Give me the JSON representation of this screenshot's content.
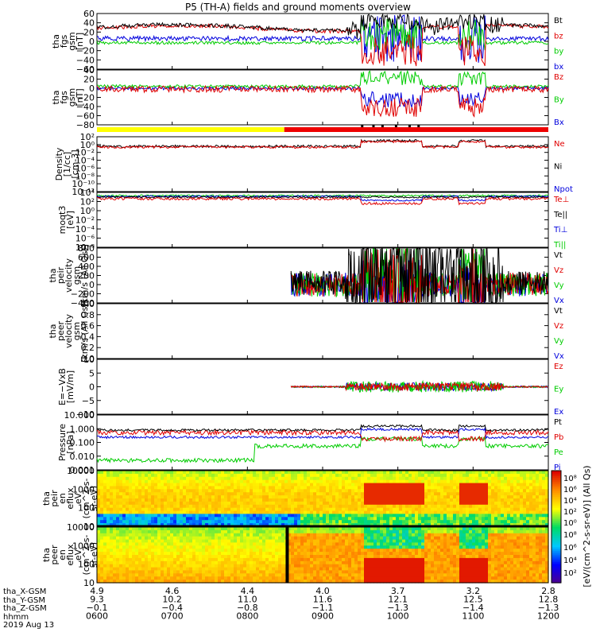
{
  "title": "P5 (TH-A) fields and ground moments overview",
  "date": "2019 Aug 13",
  "colors": {
    "black": "#000000",
    "red": "#e00000",
    "green": "#00cc00",
    "blue": "#0000dd",
    "yellow": "#ffff00",
    "statusRed": "#ee0000"
  },
  "panels": [
    {
      "id": "fgs-gsm-1",
      "ylabel": [
        "tha",
        "fgs",
        "gsm",
        "[nT]"
      ],
      "yticks": [
        "60",
        "40",
        "20",
        "0",
        "−20",
        "−40",
        "−60"
      ],
      "ylim": [
        -60,
        60
      ],
      "legend": [
        {
          "text": "Bt",
          "color": "#000000"
        },
        {
          "text": "bz",
          "color": "#e00000"
        },
        {
          "text": "by",
          "color": "#00cc00"
        },
        {
          "text": "bx",
          "color": "#0000dd"
        }
      ]
    },
    {
      "id": "fgs-gsm-2",
      "ylabel": [
        "tha",
        "fgs",
        "gsm",
        "[nT]"
      ],
      "yticks": [
        "40",
        "20",
        "0",
        "−20",
        "−40",
        "−60",
        "−80"
      ],
      "ylim": [
        -80,
        40
      ],
      "legend": [
        {
          "text": "Bz",
          "color": "#e00000"
        },
        {
          "text": "By",
          "color": "#00cc00"
        },
        {
          "text": "Bx",
          "color": "#0000dd"
        }
      ]
    },
    {
      "id": "density",
      "ylabel": [
        "Density",
        "[1/cc]",
        "[cm-3]"
      ],
      "yticks": [
        "10²",
        "10⁰",
        "10⁻²",
        "10⁻⁴",
        "10⁻⁶",
        "10⁻⁸",
        "10⁻¹⁰",
        "10⁻¹²"
      ],
      "log": true,
      "legend": [
        {
          "text": "Ne",
          "color": "#e00000"
        },
        {
          "text": "Ni",
          "color": "#000000"
        },
        {
          "text": "Npot",
          "color": "#0000dd"
        }
      ]
    },
    {
      "id": "temperature",
      "ylabel": [
        "moqt3",
        "[eV]"
      ],
      "yticks": [
        "10⁴",
        "10²",
        "10⁰",
        "10⁻²",
        "10⁻⁴",
        "10⁻⁶",
        "10⁻⁸"
      ],
      "log": true,
      "legend": [
        {
          "text": "Te⊥",
          "color": "#e00000"
        },
        {
          "text": "Te||",
          "color": "#000000"
        },
        {
          "text": "Ti⊥",
          "color": "#0000dd"
        },
        {
          "text": "Ti||",
          "color": "#00cc00"
        }
      ]
    },
    {
      "id": "peir-velocity",
      "ylabel": [
        "tha",
        "peir",
        "velocity",
        "gsm",
        "[km/s (All Qs)]"
      ],
      "yticks": [
        "800",
        "600",
        "400",
        "200",
        "0",
        "−200",
        "−400"
      ],
      "ylim": [
        -400,
        800
      ],
      "legend": [
        {
          "text": "Vt",
          "color": "#000000"
        },
        {
          "text": "Vz",
          "color": "#e00000"
        },
        {
          "text": "Vy",
          "color": "#00cc00"
        },
        {
          "text": "Vx",
          "color": "#0000dd"
        }
      ]
    },
    {
      "id": "peer-velocity",
      "ylabel": [
        "tha",
        "peer",
        "velocity",
        "gsm",
        "[km/s (All Qs)]"
      ],
      "yticks": [
        "1.0",
        "0.8",
        "0.6",
        "0.4",
        "0.2",
        "0.0"
      ],
      "ylim": [
        0,
        1
      ],
      "legend": [
        {
          "text": "Vt",
          "color": "#000000"
        },
        {
          "text": "Vz",
          "color": "#e00000"
        },
        {
          "text": "Vy",
          "color": "#00cc00"
        },
        {
          "text": "Vx",
          "color": "#0000dd"
        }
      ]
    },
    {
      "id": "efield",
      "ylabel": [
        "E=−VxB",
        "[mV/m]"
      ],
      "yticks": [
        "10",
        "5",
        "0",
        "−5",
        "−10"
      ],
      "ylim": [
        -10,
        10
      ],
      "legend": [
        {
          "text": "Ez",
          "color": "#e00000"
        },
        {
          "text": "Ey",
          "color": "#00cc00"
        },
        {
          "text": "Ex",
          "color": "#0000dd"
        }
      ]
    },
    {
      "id": "pressure",
      "ylabel": [
        "Pressure",
        "[nPa]"
      ],
      "yticks": [
        "10.000",
        "1.000",
        "0.100",
        "0.010",
        "0.001"
      ],
      "log": true,
      "legend": [
        {
          "text": "Pt",
          "color": "#000000"
        },
        {
          "text": "Pb",
          "color": "#e00000"
        },
        {
          "text": "Pe",
          "color": "#00cc00"
        },
        {
          "text": "Pi",
          "color": "#0000dd"
        }
      ]
    },
    {
      "id": "peir-eflux",
      "ylabel": [
        "tha",
        "peir",
        "en",
        "eflux",
        "eV",
        "(cm^2-s-",
        "sr-eV)"
      ],
      "yticks": [
        "10000",
        "1000",
        "100",
        "10"
      ],
      "colorbar_ticks": [
        "10⁸",
        "10⁶",
        "10⁴",
        "10²",
        "10⁰"
      ]
    },
    {
      "id": "peer-eflux",
      "ylabel": [
        "tha",
        "peer",
        "en",
        "eflux",
        "eV",
        "(cm^2-s-",
        "sr-eV)"
      ],
      "yticks": [
        "10000",
        "1000",
        "100",
        "10"
      ],
      "colorbar_ticks": [
        "10⁸",
        "10⁶",
        "10⁴",
        "10²"
      ]
    }
  ],
  "colorbar_label": "[eV/(cm^2-s-sr-eV)] (All Qs)",
  "xaxis": {
    "hhmm": [
      "0600",
      "0700",
      "0800",
      "0900",
      "1000",
      "1100",
      "1200"
    ],
    "rows": [
      {
        "name": "tha_X-GSM",
        "values": [
          "4.9",
          "4.6",
          "4.4",
          "4.0",
          "3.7",
          "3.2",
          "2.8"
        ]
      },
      {
        "name": "tha_Y-GSM",
        "values": [
          "9.3",
          "10.2",
          "11.0",
          "11.6",
          "12.1",
          "12.5",
          "12.8"
        ]
      },
      {
        "name": "tha_Z-GSM",
        "values": [
          "−0.1",
          "−0.4",
          "−0.8",
          "−1.1",
          "−1.3",
          "−1.4",
          "−1.3"
        ]
      },
      {
        "name": "hhmm",
        "values": [
          "0600",
          "0700",
          "0800",
          "0900",
          "1000",
          "1100",
          "1200"
        ]
      }
    ]
  },
  "chart_data": {
    "type": "line",
    "title": "P5 (TH-A) fields and ground moments overview",
    "x": [
      "0600",
      "0700",
      "0800",
      "0900",
      "1000",
      "1100",
      "1200"
    ],
    "xlabel": "hhmm",
    "series": [
      {
        "name": "Bt",
        "panel": "fgs-gsm-1",
        "values": [
          28,
          32,
          35,
          30,
          45,
          30,
          25
        ]
      },
      {
        "name": "bz",
        "panel": "fgs-gsm-1",
        "values": [
          27,
          31,
          33,
          28,
          -25,
          5,
          24
        ]
      },
      {
        "name": "by",
        "panel": "fgs-gsm-1",
        "values": [
          -2,
          -3,
          -2,
          -4,
          20,
          20,
          -8
        ]
      },
      {
        "name": "bx",
        "panel": "fgs-gsm-1",
        "values": [
          0,
          2,
          1,
          5,
          3,
          12,
          6
        ]
      },
      {
        "name": "Bz",
        "panel": "fgs-gsm-2",
        "values": [
          0,
          -5,
          -2,
          -2,
          -45,
          -40,
          -5
        ]
      },
      {
        "name": "By",
        "panel": "fgs-gsm-2",
        "values": [
          5,
          5,
          5,
          5,
          20,
          15,
          5
        ]
      },
      {
        "name": "Bx",
        "panel": "fgs-gsm-2",
        "values": [
          2,
          2,
          2,
          2,
          -20,
          -15,
          2
        ]
      },
      {
        "name": "Vt",
        "panel": "peir-velocity",
        "values": [
          null,
          null,
          null,
          30,
          300,
          150,
          60
        ]
      },
      {
        "name": "Vy",
        "panel": "peir-velocity",
        "values": [
          null,
          null,
          null,
          0,
          250,
          130,
          0
        ]
      },
      {
        "name": "Vx",
        "panel": "peir-velocity",
        "values": [
          null,
          null,
          null,
          0,
          -200,
          -150,
          0
        ]
      },
      {
        "name": "Pt",
        "panel": "pressure",
        "values": [
          0.6,
          0.7,
          0.6,
          0.6,
          0.9,
          0.7,
          0.5
        ]
      },
      {
        "name": "Pb",
        "panel": "pressure",
        "values": [
          0.4,
          0.45,
          0.45,
          0.4,
          0.2,
          0.3,
          0.35
        ]
      },
      {
        "name": "Pe",
        "panel": "pressure",
        "values": [
          0.005,
          0.008,
          0.02,
          0.04,
          0.1,
          0.05,
          0.02
        ]
      },
      {
        "name": "Pi",
        "panel": "pressure",
        "values": [
          0.15,
          0.2,
          0.2,
          0.25,
          0.6,
          0.4,
          0.15
        ]
      }
    ],
    "status_bar": {
      "yellow_until": "0830",
      "red_from": "0830"
    }
  }
}
